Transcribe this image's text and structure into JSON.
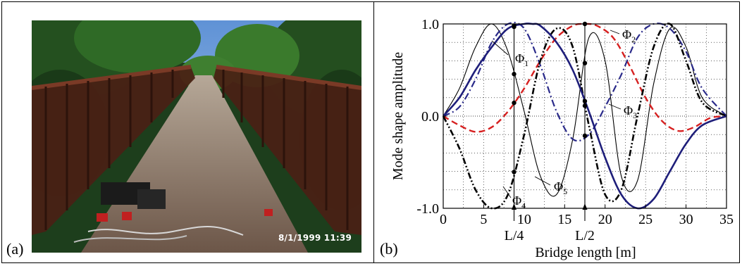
{
  "panels": {
    "a": {
      "label": "(a)",
      "timestamp": "8/1/1999 11:39"
    },
    "b": {
      "label": "(b)"
    }
  },
  "chart_data": {
    "type": "line",
    "xlabel": "Bridge length [m]",
    "ylabel": "Mode shape amplitude",
    "xlim": [
      0,
      35
    ],
    "ylim": [
      -1.0,
      1.0
    ],
    "x_ticks": [
      "0",
      "5",
      "10",
      "15",
      "20",
      "25",
      "30",
      "35"
    ],
    "y_ticks": [
      "-1.0",
      "0.0",
      "1.0"
    ],
    "grid": true,
    "annotations": {
      "quarter_span": "L/4",
      "half_span": "L/2",
      "quarter_span_x": 8.75,
      "half_span_x": 17.5
    },
    "series": [
      {
        "name": "Φ1",
        "label_main": "Φ",
        "label_sub": "1",
        "color": "#000000",
        "style": "thin",
        "x": [
          0,
          2,
          4,
          6,
          8,
          10,
          12,
          14,
          16,
          18,
          20,
          22,
          24,
          26,
          28,
          30,
          32,
          35
        ],
        "y": [
          0,
          0.3,
          0.75,
          1.0,
          0.7,
          0.05,
          -0.65,
          -0.85,
          -0.25,
          0.85,
          0.6,
          -0.65,
          -0.7,
          0.35,
          0.95,
          0.75,
          0.2,
          0
        ]
      },
      {
        "name": "Φ2",
        "label_main": "Φ",
        "label_sub": "2",
        "color": "#d62020",
        "style": "dash",
        "x": [
          0,
          2,
          4,
          6,
          8,
          10,
          12,
          14,
          16,
          17.5,
          19,
          21,
          23,
          25,
          27,
          29,
          31,
          33,
          35
        ],
        "y": [
          0,
          -0.1,
          -0.17,
          -0.12,
          0.05,
          0.3,
          0.6,
          0.85,
          0.98,
          1.0,
          0.98,
          0.85,
          0.55,
          0.2,
          -0.05,
          -0.16,
          -0.12,
          -0.02,
          0
        ]
      },
      {
        "name": "Φ3",
        "label_main": "Φ",
        "label_sub": "3",
        "color": "#2a2a8a",
        "style": "dashdot",
        "x": [
          0,
          2,
          4,
          6,
          8,
          10,
          12,
          14,
          16,
          18,
          20,
          22,
          24,
          26,
          28,
          30,
          32,
          35
        ],
        "y": [
          0,
          0.1,
          0.4,
          0.8,
          1.0,
          0.95,
          0.55,
          0.05,
          -0.25,
          -0.2,
          0.1,
          0.45,
          0.85,
          1.0,
          0.95,
          0.7,
          0.3,
          0
        ]
      },
      {
        "name": "Φ4",
        "label_main": "Φ",
        "label_sub": "4",
        "color": "#000000",
        "style": "dashdotdot",
        "x": [
          0,
          2,
          4,
          6,
          8,
          10,
          12,
          14,
          16,
          18,
          20,
          22,
          24,
          26,
          28,
          30,
          32,
          35
        ],
        "y": [
          0,
          -0.35,
          -0.8,
          -1.0,
          -0.85,
          -0.2,
          0.6,
          0.95,
          0.75,
          -0.1,
          -0.85,
          -0.8,
          0.0,
          0.75,
          1.0,
          0.6,
          0.15,
          0
        ]
      },
      {
        "name": "Φ5",
        "label_main": "Φ",
        "label_sub": "5",
        "color": "#1e1e7a",
        "style": "thick",
        "x": [
          0,
          2,
          4,
          6,
          8,
          10,
          11,
          12,
          14,
          16,
          18,
          20,
          22,
          24,
          26,
          28,
          30,
          32,
          35
        ],
        "y": [
          0,
          0.2,
          0.5,
          0.75,
          0.95,
          1.0,
          1.0,
          0.98,
          0.8,
          0.5,
          0.05,
          -0.45,
          -0.85,
          -1.0,
          -0.9,
          -0.6,
          -0.3,
          -0.1,
          0
        ]
      }
    ]
  },
  "colors": {
    "sky": "#6f9fd8",
    "foliage": "#1f4a1e",
    "railing": "#5e2a1c",
    "deck": "#9b8572"
  }
}
